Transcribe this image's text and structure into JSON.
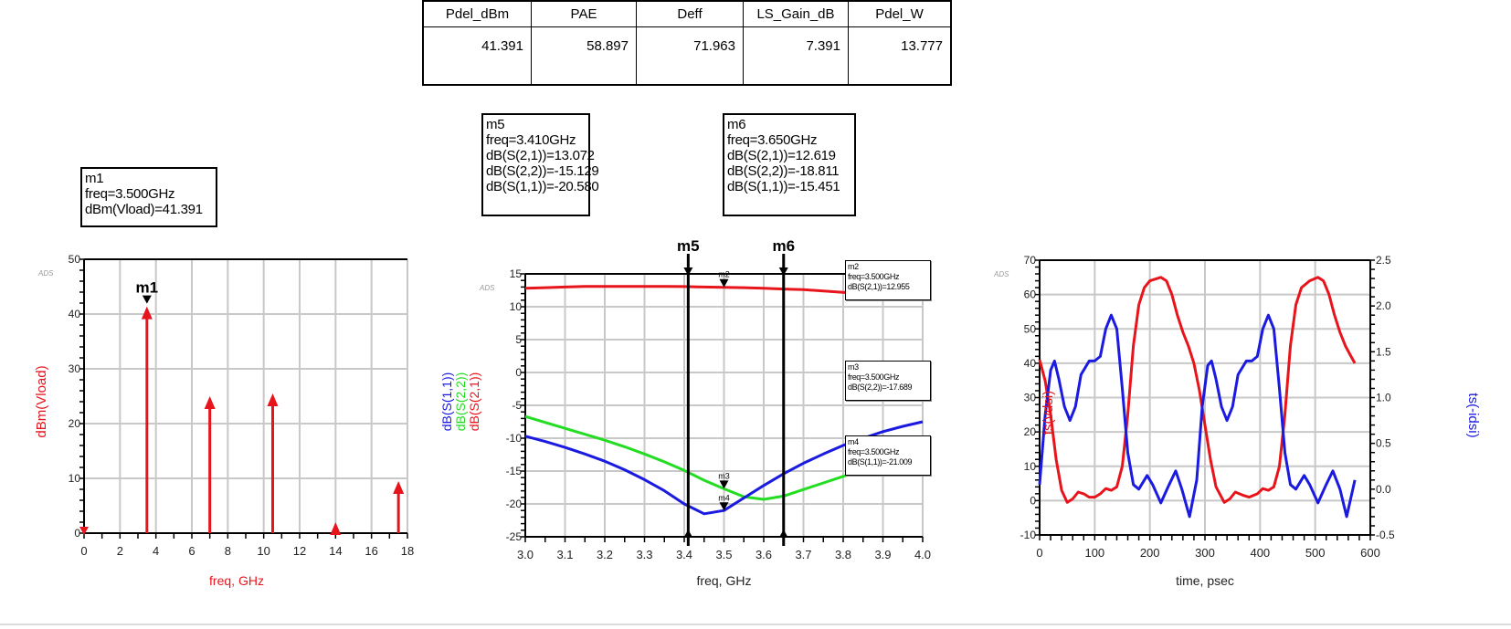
{
  "table": {
    "headers": [
      "Pdel_dBm",
      "PAE",
      "Deff",
      "LS_Gain_dB",
      "Pdel_W"
    ],
    "values": [
      "41.391",
      "58.897",
      "71.963",
      "7.391",
      "13.777"
    ]
  },
  "markers": {
    "m1": [
      "m1",
      "freq=3.500GHz",
      "dBm(Vload)=41.391"
    ],
    "m5": [
      "m5",
      "freq=3.410GHz",
      "dB(S(2,1))=13.072",
      "dB(S(2,2))=-15.129",
      "dB(S(1,1))=-20.580"
    ],
    "m6": [
      "m6",
      "freq=3.650GHz",
      "dB(S(2,1))=12.619",
      "dB(S(2,2))=-18.811",
      "dB(S(1,1))=-15.451"
    ],
    "m2": [
      "m2",
      "freq=3.500GHz",
      "dB(S(2,1))=12.955"
    ],
    "m3": [
      "m3",
      "freq=3.500GHz",
      "dB(S(2,2))=-17.689"
    ],
    "m4": [
      "m4",
      "freq=3.500GHz",
      "dB(S(1,1))=-21.009"
    ]
  },
  "colors": {
    "red": "#e8141c",
    "blue": "#1a1ae0",
    "green": "#22dd22",
    "grid": "#c8c8c8"
  },
  "chart_data": [
    {
      "type": "bar",
      "watermark": "ADS",
      "title": "",
      "xlabel": "freq, GHz",
      "ylabel": "dBm(Vload)",
      "xlim": [
        0,
        18
      ],
      "ylim": [
        0,
        50
      ],
      "xticks": [
        0,
        2,
        4,
        6,
        8,
        10,
        12,
        14,
        16,
        18
      ],
      "yticks": [
        0,
        10,
        20,
        30,
        40,
        50
      ],
      "x": [
        0,
        3.5,
        7.0,
        10.5,
        14.0,
        17.5
      ],
      "values": [
        0.5,
        41.391,
        25.0,
        25.5,
        2.0,
        9.5
      ],
      "marker_labels": [
        {
          "name": "m1",
          "x": 3.5
        }
      ]
    },
    {
      "type": "line",
      "watermark": "ADS",
      "xlabel": "freq, GHz",
      "ylabels": [
        "dB(S(1,1))",
        "dB(S(2,2))",
        "dB(S(2,1))"
      ],
      "xlim": [
        3.0,
        4.0
      ],
      "ylim": [
        -25,
        15
      ],
      "xticks": [
        "3.0",
        "3.1",
        "3.2",
        "3.3",
        "3.4",
        "3.5",
        "3.6",
        "3.7",
        "3.8",
        "3.9",
        "4.0"
      ],
      "yticks": [
        -25,
        -20,
        -15,
        -10,
        -5,
        0,
        5,
        10,
        15
      ],
      "x": [
        3.0,
        3.05,
        3.1,
        3.15,
        3.2,
        3.25,
        3.3,
        3.35,
        3.4,
        3.45,
        3.5,
        3.55,
        3.6,
        3.65,
        3.7,
        3.75,
        3.8,
        3.85,
        3.9,
        3.95,
        4.0
      ],
      "series": [
        {
          "name": "dB(S(2,1))",
          "color": "red",
          "values": [
            12.8,
            12.9,
            13.0,
            13.1,
            13.1,
            13.1,
            13.1,
            13.1,
            13.07,
            13.0,
            12.96,
            12.9,
            12.8,
            12.7,
            12.6,
            12.4,
            12.2,
            12.0,
            11.8,
            11.5,
            11.2
          ]
        },
        {
          "name": "dB(S(2,2))",
          "color": "green",
          "values": [
            -6.7,
            -7.6,
            -8.5,
            -9.4,
            -10.3,
            -11.3,
            -12.4,
            -13.6,
            -14.9,
            -16.4,
            -17.7,
            -18.9,
            -19.3,
            -18.8,
            -17.8,
            -16.8,
            -15.8,
            -14.9,
            -14.0,
            -13.1,
            -12.3
          ]
        },
        {
          "name": "dB(S(1,1))",
          "color": "blue",
          "values": [
            -9.7,
            -10.5,
            -11.4,
            -12.4,
            -13.5,
            -14.8,
            -16.3,
            -18.0,
            -20.0,
            -21.5,
            -21.0,
            -19.1,
            -17.2,
            -15.4,
            -13.8,
            -12.4,
            -11.1,
            -10.0,
            -9.0,
            -8.2,
            -7.5
          ]
        }
      ],
      "vertical_markers": [
        {
          "name": "m5",
          "x": 3.41
        },
        {
          "name": "m6",
          "x": 3.65
        }
      ],
      "point_markers": [
        {
          "name": "m2",
          "x": 3.5,
          "y": 12.955
        },
        {
          "name": "m3",
          "x": 3.5,
          "y": -17.689
        },
        {
          "name": "m4",
          "x": 3.5,
          "y": -21.009
        }
      ]
    },
    {
      "type": "line",
      "watermark": "ADS",
      "xlabel": "time, psec",
      "ylabel": "ts(vdsi)",
      "y2label": "ts(-idsi)",
      "xlim": [
        0,
        600
      ],
      "ylim": [
        -10,
        70
      ],
      "y2lim": [
        -0.5,
        2.5
      ],
      "xticks": [
        0,
        100,
        200,
        300,
        400,
        500,
        600
      ],
      "yticks": [
        -10,
        0,
        10,
        20,
        30,
        40,
        50,
        60,
        70
      ],
      "y2ticks": [
        "-0.5",
        "0.0",
        "0.5",
        "1.0",
        "1.5",
        "2.0",
        "2.5"
      ],
      "series": [
        {
          "name": "ts(vdsi)",
          "axis": "left",
          "color": "red",
          "x": [
            0,
            10,
            20,
            30,
            40,
            50,
            60,
            70,
            80,
            90,
            100,
            110,
            120,
            130,
            140,
            150,
            160,
            170,
            180,
            190,
            200,
            220,
            230,
            240,
            250,
            260,
            270,
            280,
            290,
            300,
            310,
            320,
            335,
            345,
            355,
            370,
            380,
            395,
            405,
            415,
            425,
            435,
            445,
            455,
            465,
            475,
            490,
            505,
            515,
            525,
            535,
            545,
            555,
            565,
            572
          ],
          "values": [
            41,
            35,
            25,
            12,
            3,
            -0.5,
            0.5,
            2.5,
            2,
            1,
            1,
            2,
            3.5,
            3,
            4,
            10,
            25,
            45,
            57,
            62,
            64,
            65,
            64,
            60,
            54,
            49,
            45,
            40,
            32,
            22,
            12,
            4,
            -0.5,
            0.5,
            2.5,
            1.5,
            1,
            2,
            3.5,
            3,
            4,
            10,
            25,
            45,
            57,
            62,
            64,
            65,
            64,
            60,
            54,
            49,
            45,
            42,
            40
          ]
        },
        {
          "name": "ts(-idsi)",
          "axis": "right",
          "color": "blue",
          "x": [
            0,
            10,
            20,
            27,
            35,
            45,
            55,
            65,
            75,
            90,
            100,
            110,
            120,
            130,
            140,
            150,
            160,
            170,
            180,
            195,
            205,
            220,
            235,
            247,
            258,
            272,
            285,
            295,
            305,
            312,
            320,
            330,
            340,
            350,
            360,
            375,
            385,
            395,
            405,
            415,
            425,
            435,
            445,
            455,
            465,
            480,
            490,
            505,
            520,
            532,
            545,
            557,
            572
          ],
          "values": [
            0.05,
            0.8,
            1.3,
            1.4,
            1.2,
            0.9,
            0.75,
            0.9,
            1.25,
            1.4,
            1.4,
            1.45,
            1.75,
            1.9,
            1.75,
            1.1,
            0.4,
            0.05,
            0.0,
            0.15,
            0.05,
            -0.15,
            0.05,
            0.2,
            0.0,
            -0.3,
            0.1,
            0.9,
            1.35,
            1.4,
            1.2,
            0.9,
            0.75,
            0.9,
            1.25,
            1.4,
            1.4,
            1.45,
            1.75,
            1.9,
            1.75,
            1.1,
            0.4,
            0.05,
            0.0,
            0.15,
            0.05,
            -0.15,
            0.05,
            0.2,
            0.0,
            -0.3,
            0.1
          ]
        }
      ]
    }
  ]
}
